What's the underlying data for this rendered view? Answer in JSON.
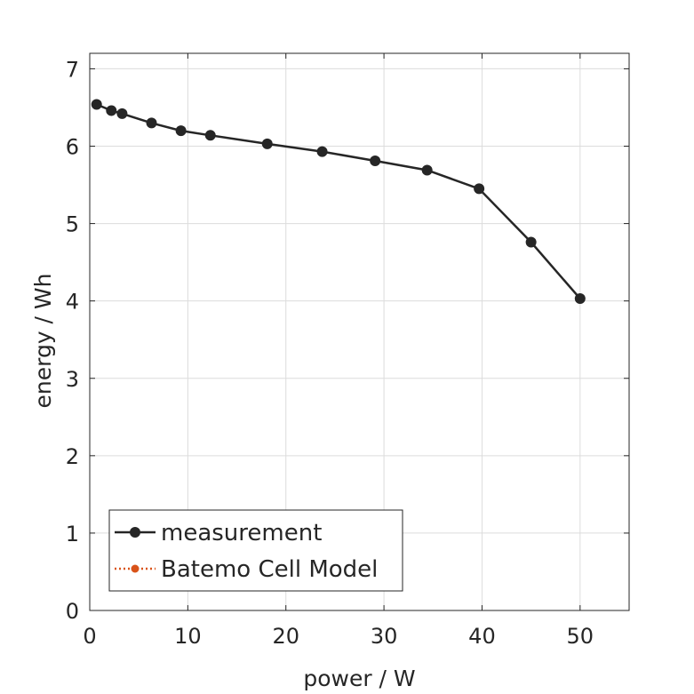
{
  "chart_data": {
    "type": "line",
    "title": "",
    "xlabel": "power / W",
    "ylabel": "energy / Wh",
    "xlim": [
      0,
      55
    ],
    "ylim": [
      0,
      7.2
    ],
    "xticks": [
      0,
      10,
      20,
      30,
      40,
      50
    ],
    "yticks": [
      0,
      1,
      2,
      3,
      4,
      5,
      6,
      7
    ],
    "grid": true,
    "legend_position": "bottom-left",
    "series": [
      {
        "name": "measurement",
        "color": "#262626",
        "line_style": "solid",
        "marker": "circle",
        "x": [
          0.7,
          2.2,
          3.3,
          6.3,
          9.3,
          12.3,
          18.1,
          23.7,
          29.1,
          34.4,
          39.7,
          45.0,
          50.0
        ],
        "y": [
          6.54,
          6.46,
          6.42,
          6.3,
          6.2,
          6.14,
          6.03,
          5.93,
          5.81,
          5.69,
          5.45,
          4.76,
          4.03
        ]
      },
      {
        "name": "Batemo Cell Model",
        "color": "#D95319",
        "line_style": "dotted",
        "marker": "circle",
        "x": [],
        "y": []
      }
    ]
  }
}
